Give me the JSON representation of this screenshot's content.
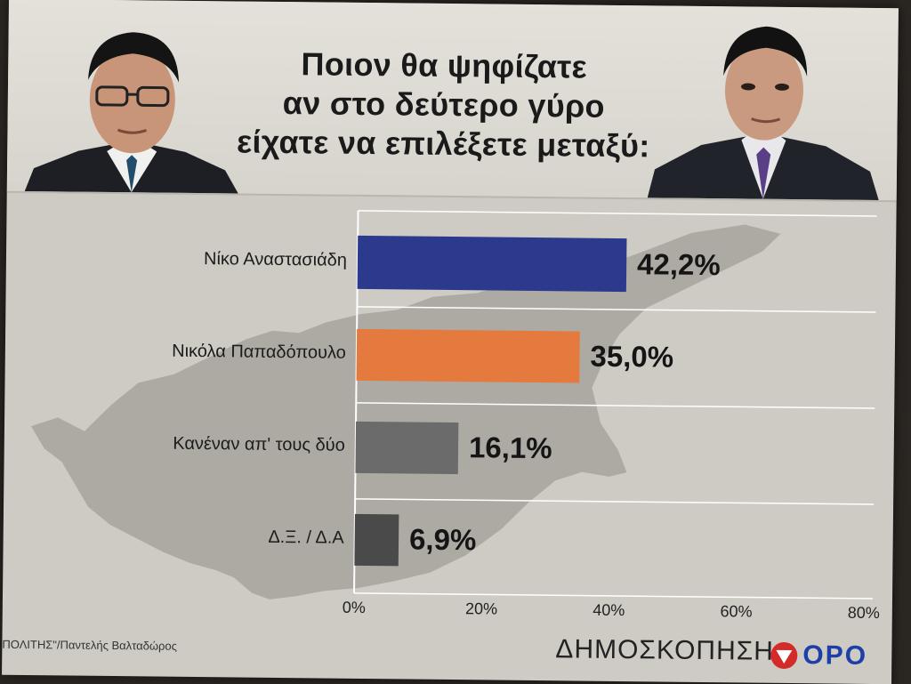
{
  "header": {
    "title_lines": [
      "Ποιον θα ψηφίζατε",
      "αν στο δεύτερο γύρο",
      "είχατε να επιλέξετε μεταξύ:"
    ]
  },
  "chart_data": {
    "type": "bar",
    "orientation": "horizontal",
    "categories": [
      "Νίκο Αναστασιάδη",
      "Νικόλα Παπαδόπουλο",
      "Κανέναν απ' τους δύο",
      "Δ.Ξ. / Δ.Α"
    ],
    "values": [
      42.2,
      35.0,
      16.1,
      6.9
    ],
    "value_labels": [
      "42,2%",
      "35,0%",
      "16,1%",
      "6,9%"
    ],
    "colors": [
      "#2b3a8c",
      "#e57a3f",
      "#6b6b6b",
      "#4a4a4a"
    ],
    "xlim": [
      0,
      80
    ],
    "x_ticks": [
      "0%",
      "20%",
      "40%",
      "60%",
      "80%"
    ],
    "grid": true
  },
  "footer": {
    "credit": "ΠΟΛΙΤΗΣ\"/Παντελής Βαλταδώρος",
    "poll_label": "ΔΗΜΟΣΚΟΠΗΣΗ",
    "logo_text": "ΟΡΟ"
  },
  "colors": {
    "background": "#cdcbc3",
    "map": "#a7a59e",
    "logo_red": "#d42a2a",
    "logo_blue": "#1d3fa8"
  },
  "icons": [
    "portrait-left",
    "portrait-right",
    "cyprus-map",
    "logo-mark-icon"
  ]
}
